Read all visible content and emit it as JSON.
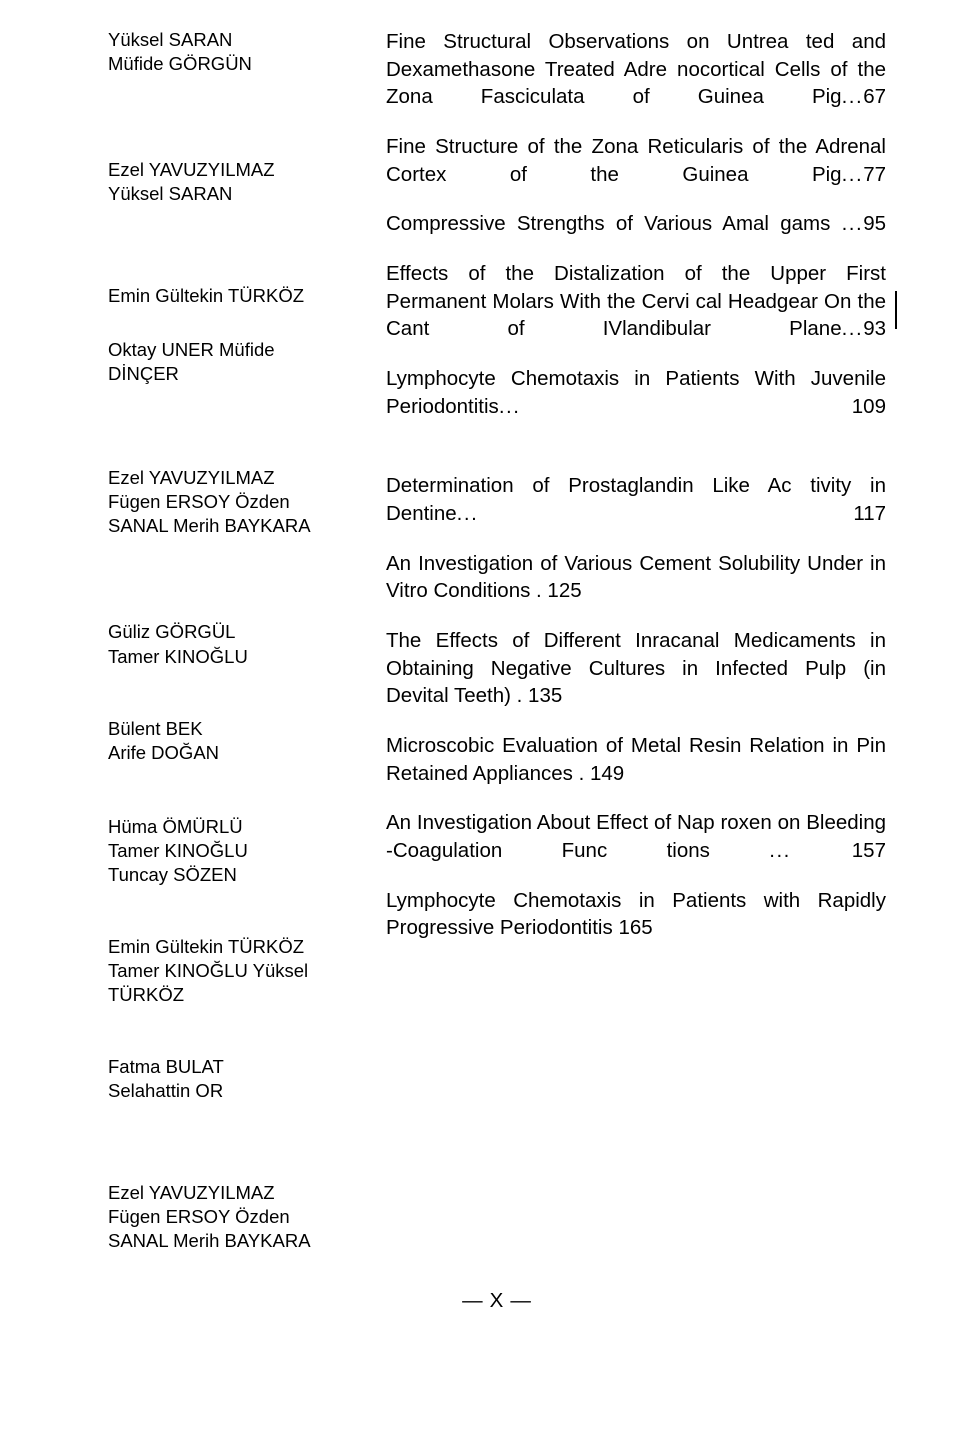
{
  "authors": [
    {
      "lines": [
        "Yüksel SARAN",
        "Müfide GÖRGÜN"
      ],
      "spacing": "sp1"
    },
    {
      "lines": [
        "Ezel YAVUZYILMAZ",
        "Yüksel SARAN"
      ],
      "spacing": "sp4"
    },
    {
      "lines": [
        "Emin Gültekin TÜRKÖZ"
      ],
      "spacing": "sp3"
    },
    {
      "lines": [
        "Oktay UNER Müfide",
        "DİNÇER"
      ],
      "spacing": "sp5"
    },
    {
      "lines": [
        "Ezel YAVUZYILMAZ",
        "Fügen ERSOY Özden",
        "SANAL Merih BAYKARA"
      ],
      "spacing": "sp6"
    },
    {
      "lines": [
        "Güliz GÖRGÜL",
        "Tamer KINOĞLU"
      ],
      "spacing": "sp7"
    },
    {
      "lines": [
        "Bülent BEK",
        "Arife DOĞAN"
      ],
      "spacing": "sp8"
    },
    {
      "lines": [
        "Hüma   ÖMÜRLÜ",
        "Tamer  KINOĞLU",
        "Tuncay SÖZEN"
      ],
      "spacing": "sp9"
    },
    {
      "lines": [
        "Emin Gültekin TÜRKÖZ",
        "Tamer KINOĞLU Yüksel",
        "TÜRKÖZ"
      ],
      "spacing": "sp10"
    },
    {
      "lines": [
        "Fatma BULAT",
        "Selahattin OR"
      ],
      "spacing": "sp11"
    },
    {
      "lines": [
        "Ezel YAVUZYILMAZ",
        "Fügen ERSOY Özden",
        "SANAL Merih BAYKARA"
      ],
      "spacing": "last"
    }
  ],
  "entries": [
    {
      "text": "Fine Structural Observations on Untrea ted and Dexamethasone Treated Adre nocortical Cells of the Zona Fasciculata of Guinea Pig",
      "dots": "...",
      "page": "67",
      "spacing": "sp-a",
      "lastLeft": false
    },
    {
      "text": "Fine Structure of the Zona Reticularis of the Adrenal Cortex of the Guinea Pig",
      "dots": "...",
      "page": "77",
      "spacing": "sp-b",
      "lastLeft": false
    },
    {
      "text": "Compressive Strengths of Various Amal gams ",
      "dots": "...",
      "page": "95",
      "spacing": "sp-c",
      "lastLeft": false
    },
    {
      "text": "Effects of the Distalization of the Upper First Permanent Molars With the Cervi cal Headgear On the Cant of IVlandibular Plane",
      "dots": "...",
      "page": "93",
      "spacing": "sp-d",
      "lastLeft": false
    },
    {
      "text": "Lymphocyte Chemotaxis in Patients With Juvenile  Periodontitis",
      "dots": "... ",
      "page": "109",
      "spacing": "sp-e",
      "lastLeft": false
    },
    {
      "text": "Determination of Prostaglandin Like Ac tivity in  Dentine",
      "dots": "... ",
      "page": "117",
      "spacing": "sp-f",
      "lastLeft": false
    },
    {
      "text": "An Investigation of Various Cement Solubility Under in Vitro Conditions .",
      "dots": "",
      "page": "   125",
      "spacing": "sp-g",
      "lastLeft": true
    },
    {
      "text": "The Effects of Different Inracanal Medicaments in Obtaining Negative Cultures in Infected Pulp (in Devital Teeth) .",
      "dots": "",
      "page": "   135",
      "spacing": "sp-h",
      "lastLeft": true
    },
    {
      "text": "Microscobic Evaluation of Metal Resin Relation in Pin Retained Appliances .",
      "dots": "",
      "page": "   149",
      "spacing": "sp-i",
      "lastLeft": true
    },
    {
      "text": "An Investigation About Effect of Nap roxen on Bleeding -Coagulation Func tions  ",
      "dots": "... ",
      "page": "157",
      "spacing": "sp-j",
      "lastLeft": false
    },
    {
      "text": "Lymphocyte Chemotaxis in Patients with Rapidly Progressive Periodontitis",
      "dots": "",
      "page": "   165",
      "spacing": "sp-k",
      "lastLeft": true
    }
  ],
  "footer": {
    "left": "—",
    "center": "X",
    "right": "—"
  }
}
